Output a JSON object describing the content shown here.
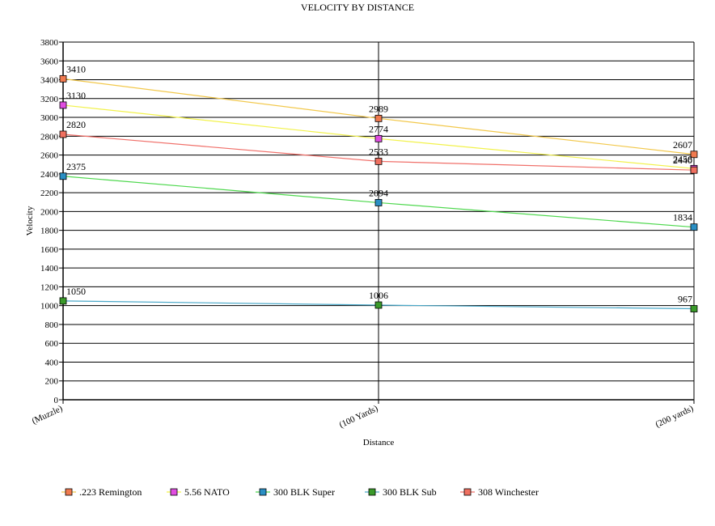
{
  "chart_data": {
    "type": "line",
    "title": "VELOCITY BY DISTANCE",
    "xlabel": "Distance",
    "ylabel": "Velocity",
    "categories": [
      "(Muzzle)",
      "(100 Yards)",
      "(200 yards)"
    ],
    "ylim": [
      0,
      3800
    ],
    "yticks": [
      0,
      200,
      400,
      600,
      800,
      1000,
      1200,
      1400,
      1600,
      1800,
      2000,
      2200,
      2400,
      2600,
      2800,
      3000,
      3200,
      3400,
      3600,
      3800
    ],
    "grid": true,
    "legend_position": "bottom",
    "series": [
      {
        "name": ".223 Remington",
        "values": [
          3410,
          2989,
          2607
        ],
        "line_color": "#f2c84b",
        "marker_color": "#f07a4f"
      },
      {
        "name": "5.56 NATO",
        "values": [
          3130,
          2774,
          2456
        ],
        "line_color": "#f2f24b",
        "marker_color": "#e04ee0"
      },
      {
        "name": "300 BLK Super",
        "values": [
          2375,
          2094,
          1834
        ],
        "line_color": "#4ed84e",
        "marker_color": "#2a8fc4"
      },
      {
        "name": "300 BLK Sub",
        "values": [
          1050,
          1006,
          967
        ],
        "line_color": "#4aa8c8",
        "marker_color": "#3a9a2a"
      },
      {
        "name": "308 Winchester",
        "values": [
          2820,
          2533,
          2440
        ],
        "line_color": "#f0706a",
        "marker_color": "#f07060"
      }
    ]
  }
}
